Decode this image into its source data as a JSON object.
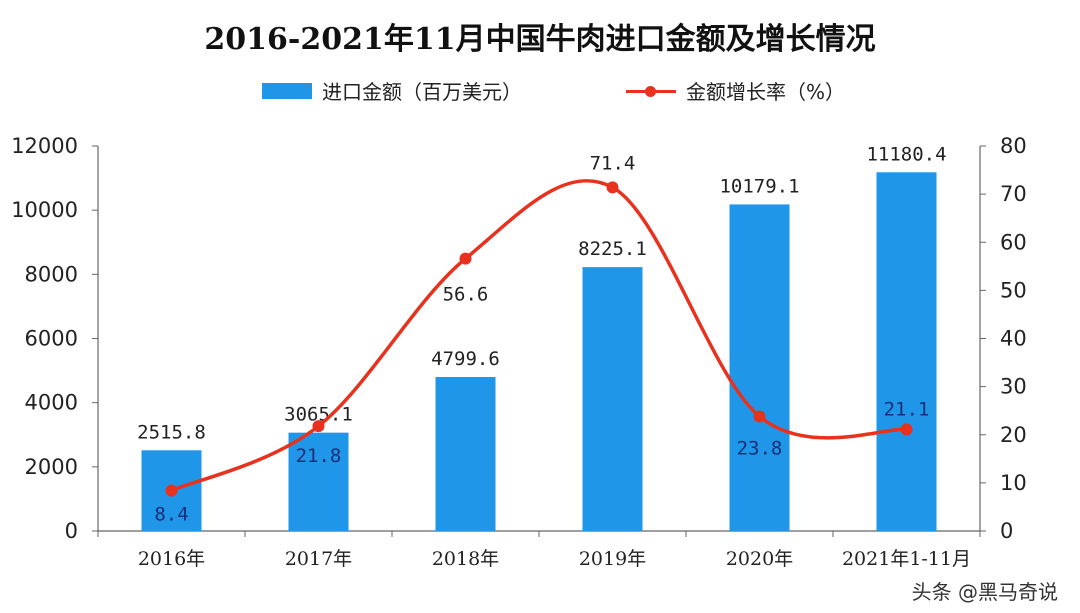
{
  "chart_data": {
    "type": "bar",
    "title": "2016-2021年11月中国牛肉进口金额及增长情况",
    "categories": [
      "2016年",
      "2017年",
      "2018年",
      "2019年",
      "2020年",
      "2021年1-11月"
    ],
    "series": [
      {
        "name": "进口金额（百万美元）",
        "type": "bar",
        "axis": "left",
        "color": "#1f96e8",
        "values": [
          2515.8,
          3065.1,
          4799.6,
          8225.1,
          10179.1,
          11180.4
        ],
        "labels": [
          "2515.8",
          "3065.1",
          "4799.6",
          "8225.1",
          "10179.1",
          "11180.4"
        ]
      },
      {
        "name": "金额增长率（%）",
        "type": "line",
        "axis": "right",
        "color": "#e8321e",
        "values": [
          8.4,
          21.8,
          56.6,
          71.4,
          23.8,
          21.1
        ],
        "labels": [
          "8.4",
          "21.8",
          "56.6",
          "71.4",
          "23.8",
          "21.1"
        ]
      }
    ],
    "ylim_left": [
      0,
      12000
    ],
    "yticks_left": [
      "0",
      "2000",
      "4000",
      "6000",
      "8000",
      "10000",
      "12000"
    ],
    "ylim_right": [
      0,
      80
    ],
    "yticks_right": [
      "0",
      "10",
      "20",
      "30",
      "40",
      "50",
      "60",
      "70",
      "80"
    ],
    "grid": false,
    "legend": "top-center"
  },
  "watermark": "头条 @黑马奇说"
}
